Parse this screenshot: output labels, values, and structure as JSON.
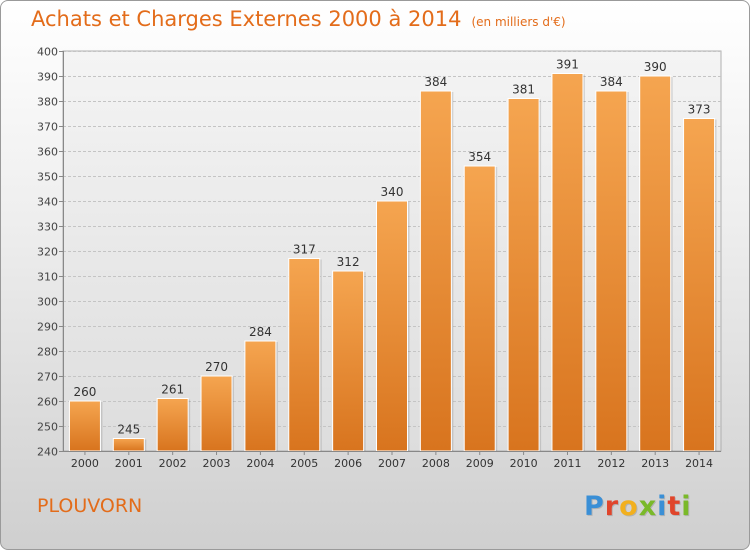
{
  "title": "Achats et Charges Externes 2000 à 2014",
  "subtitle": "(en milliers d'€)",
  "commune": "PLOUVORN",
  "logo": {
    "letters": [
      {
        "char": "P",
        "color": "#3a8fd6"
      },
      {
        "char": "r",
        "color": "#e0452b"
      },
      {
        "char": "o",
        "color": "#f2b01e"
      },
      {
        "char": "x",
        "color": "#7ab929"
      },
      {
        "char": "i",
        "color": "#3a8fd6"
      },
      {
        "char": "t",
        "color": "#e0452b"
      },
      {
        "char": "i",
        "color": "#7ab929"
      }
    ]
  },
  "chart_data": {
    "type": "bar",
    "title": "Achats et Charges Externes 2000 à 2014",
    "subtitle": "(en milliers d'€)",
    "categories": [
      "2000",
      "2001",
      "2002",
      "2003",
      "2004",
      "2005",
      "2006",
      "2007",
      "2008",
      "2009",
      "2010",
      "2011",
      "2012",
      "2013",
      "2014"
    ],
    "values": [
      260,
      245,
      261,
      270,
      284,
      317,
      312,
      340,
      384,
      354,
      381,
      391,
      384,
      390,
      373
    ],
    "ylim": [
      240,
      400
    ],
    "yticks": [
      240,
      250,
      260,
      270,
      280,
      290,
      300,
      310,
      320,
      330,
      340,
      350,
      360,
      370,
      380,
      390,
      400
    ],
    "grid": true,
    "colors": {
      "bar_light": "#f5a550",
      "bar_dark": "#d8741e",
      "text": "#e36c1a"
    }
  }
}
